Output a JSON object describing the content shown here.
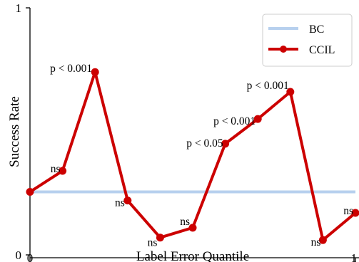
{
  "chart_data": {
    "type": "line",
    "xlabel": "Label Error Quantile",
    "ylabel": "Success Rate",
    "xlim": [
      0,
      1
    ],
    "ylim": [
      0,
      1
    ],
    "xticks": [
      "0",
      "1"
    ],
    "yticks": [
      "0",
      "1"
    ],
    "legend": {
      "placement": "top-right",
      "entries": [
        "BC",
        "CCIL"
      ]
    },
    "colors": {
      "BC": "#b7d0ee",
      "CCIL": "#cc0000"
    },
    "series": [
      {
        "name": "BC",
        "x": [
          0,
          1
        ],
        "y": [
          0.255,
          0.255
        ]
      },
      {
        "name": "CCIL",
        "x": [
          0,
          0.1,
          0.2,
          0.3,
          0.4,
          0.5,
          0.6,
          0.7,
          0.8,
          0.9,
          1.0
        ],
        "y": [
          0.255,
          0.34,
          0.74,
          0.22,
          0.07,
          0.11,
          0.45,
          0.55,
          0.66,
          0.06,
          0.17
        ],
        "annotations": [
          "",
          "ns",
          "p < 0.001",
          "ns",
          "ns",
          "ns",
          "p < 0.05",
          "p < 0.001",
          "p < 0.001",
          "ns",
          "ns"
        ]
      }
    ]
  }
}
